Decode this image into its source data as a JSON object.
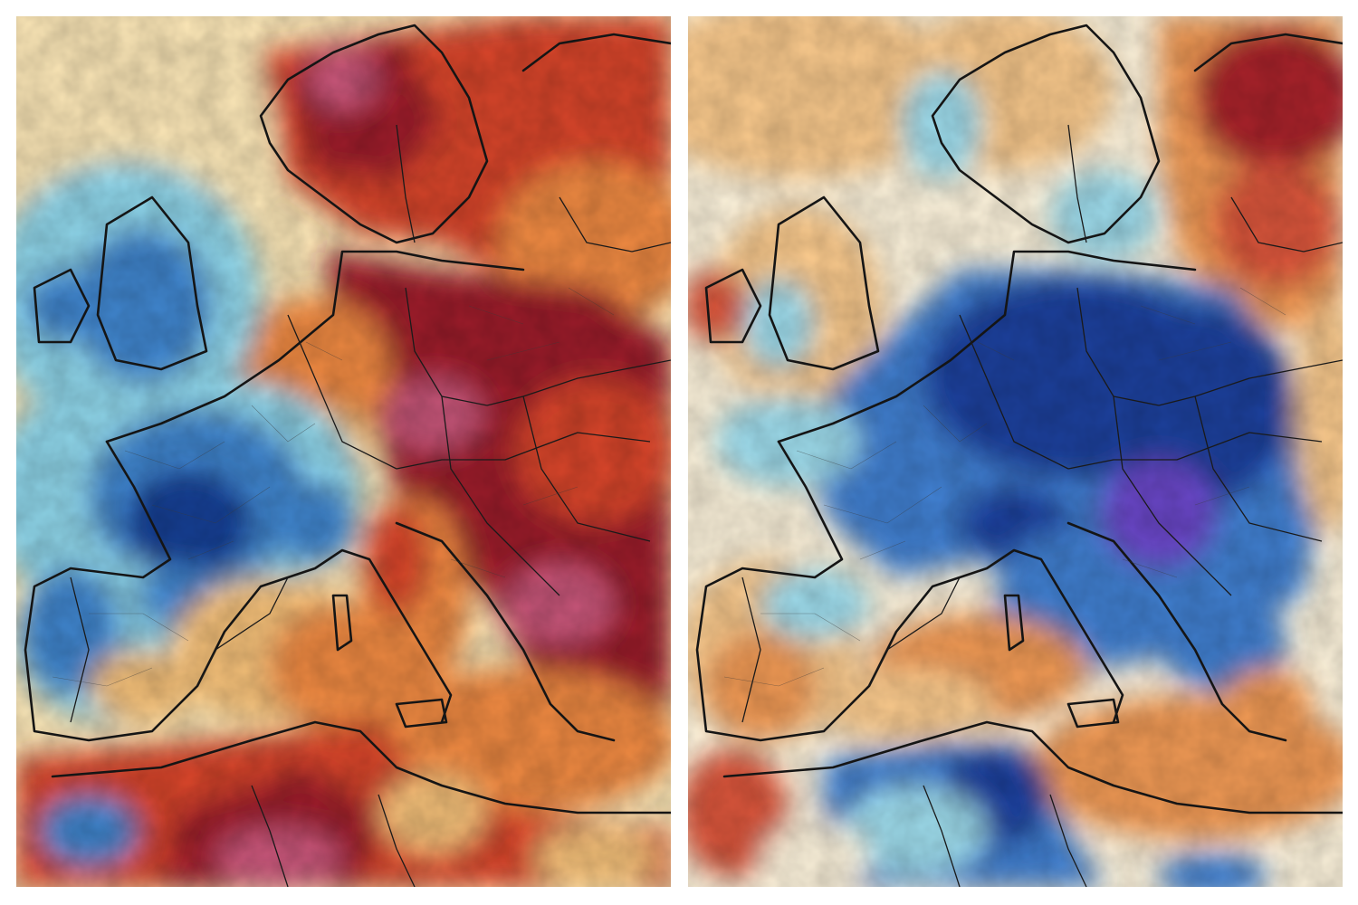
{
  "figure": {
    "panels": [
      {
        "id": "left",
        "description_key": "temperature-anomaly-map",
        "palette": {
          "hot_deep": "#9c1d2a",
          "hot": "#d8452a",
          "warm": "#f08a42",
          "mild_warm": "#f7c27a",
          "neutral": "#fde8b8",
          "mild_cold": "#8fd6ea",
          "cold": "#3f86cf",
          "cold_deep": "#173f96",
          "extreme_hot": "#c9577a"
        }
      },
      {
        "id": "right",
        "description_key": "temperature-anomaly-map",
        "palette": {
          "hot_deep": "#a8232c",
          "hot": "#d9553a",
          "warm": "#f19a55",
          "mild_warm": "#f9c98c",
          "neutral": "#fdf3dc",
          "mild_cold": "#9edcec",
          "cold": "#3f7fd0",
          "cold_deep": "#1c3f9c",
          "extreme_cold": "#6a46c9"
        }
      }
    ]
  }
}
